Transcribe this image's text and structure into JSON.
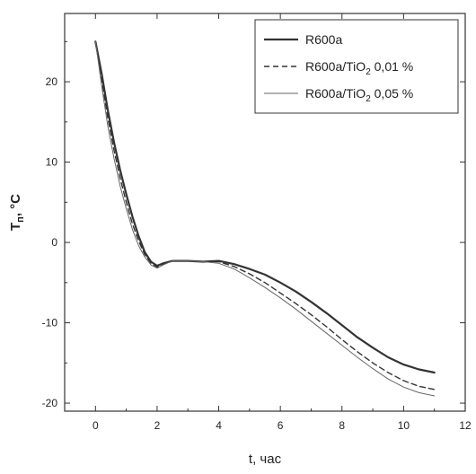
{
  "chart_data": {
    "type": "line",
    "xlabel": "t, час",
    "ylabel": "Tп, °C",
    "xlim": [
      -1,
      12
    ],
    "ylim": [
      -21,
      28.5
    ],
    "x_ticks": [
      0,
      2,
      4,
      6,
      8,
      10,
      12
    ],
    "y_ticks": [
      -20,
      -10,
      0,
      10,
      20
    ],
    "legend_position": "top-right",
    "grid": false,
    "series": [
      {
        "name": "R600a",
        "style": "solid-thick",
        "color": "#333333",
        "x": [
          0,
          0.2,
          0.4,
          0.6,
          0.8,
          1.0,
          1.2,
          1.4,
          1.6,
          1.8,
          2.0,
          2.2,
          2.5,
          3.0,
          3.5,
          4.0,
          4.5,
          5.0,
          5.5,
          6.0,
          6.5,
          7.0,
          7.5,
          8.0,
          8.5,
          9.0,
          9.5,
          10.0,
          10.5,
          11.0
        ],
        "y": [
          25,
          21,
          16.5,
          12.5,
          9,
          6,
          3.2,
          0.8,
          -1.2,
          -2.4,
          -2.9,
          -2.6,
          -2.3,
          -2.3,
          -2.4,
          -2.3,
          -2.7,
          -3.3,
          -4.0,
          -5.0,
          -6.1,
          -7.4,
          -8.8,
          -10.3,
          -11.8,
          -13.1,
          -14.3,
          -15.2,
          -15.8,
          -16.2
        ]
      },
      {
        "name": "R600a/TiO2 0,01 %",
        "legend_main": "R600a/TiO",
        "legend_sub": "2",
        "legend_suffix": " 0,01 %",
        "style": "dashed",
        "color": "#333333",
        "x": [
          0,
          0.2,
          0.4,
          0.6,
          0.8,
          1.0,
          1.2,
          1.4,
          1.6,
          1.8,
          2.0,
          2.2,
          2.5,
          3.0,
          3.5,
          4.0,
          4.5,
          5.0,
          5.5,
          6.0,
          6.5,
          7.0,
          7.5,
          8.0,
          8.5,
          9.0,
          9.5,
          10.0,
          10.5,
          11.0
        ],
        "y": [
          25,
          20.3,
          15.5,
          11.5,
          8,
          5,
          2.3,
          0.2,
          -1.5,
          -2.6,
          -3.1,
          -2.7,
          -2.3,
          -2.3,
          -2.4,
          -2.4,
          -3.0,
          -3.9,
          -5.0,
          -6.3,
          -7.6,
          -9.0,
          -10.5,
          -12.1,
          -13.6,
          -15.0,
          -16.2,
          -17.2,
          -17.9,
          -18.3
        ]
      },
      {
        "name": "R600a/TiO2 0,05 %",
        "legend_main": "R600a/TiO",
        "legend_sub": "2",
        "legend_suffix": " 0,05 %",
        "style": "solid-thin",
        "color": "#666666",
        "x": [
          0,
          0.2,
          0.4,
          0.6,
          0.8,
          1.0,
          1.2,
          1.4,
          1.6,
          1.8,
          2.0,
          2.2,
          2.5,
          3.0,
          3.5,
          4.0,
          4.5,
          5.0,
          5.5,
          6.0,
          6.5,
          7.0,
          7.5,
          8.0,
          8.5,
          9.0,
          9.5,
          10.0,
          10.5,
          11.0
        ],
        "y": [
          25,
          19.5,
          14.5,
          10.5,
          7,
          4.2,
          1.6,
          -0.4,
          -1.8,
          -2.8,
          -3.2,
          -2.8,
          -2.3,
          -2.3,
          -2.4,
          -2.6,
          -3.3,
          -4.4,
          -5.6,
          -6.9,
          -8.3,
          -9.8,
          -11.3,
          -12.8,
          -14.3,
          -15.7,
          -17.0,
          -18.0,
          -18.7,
          -19.1
        ]
      }
    ]
  }
}
